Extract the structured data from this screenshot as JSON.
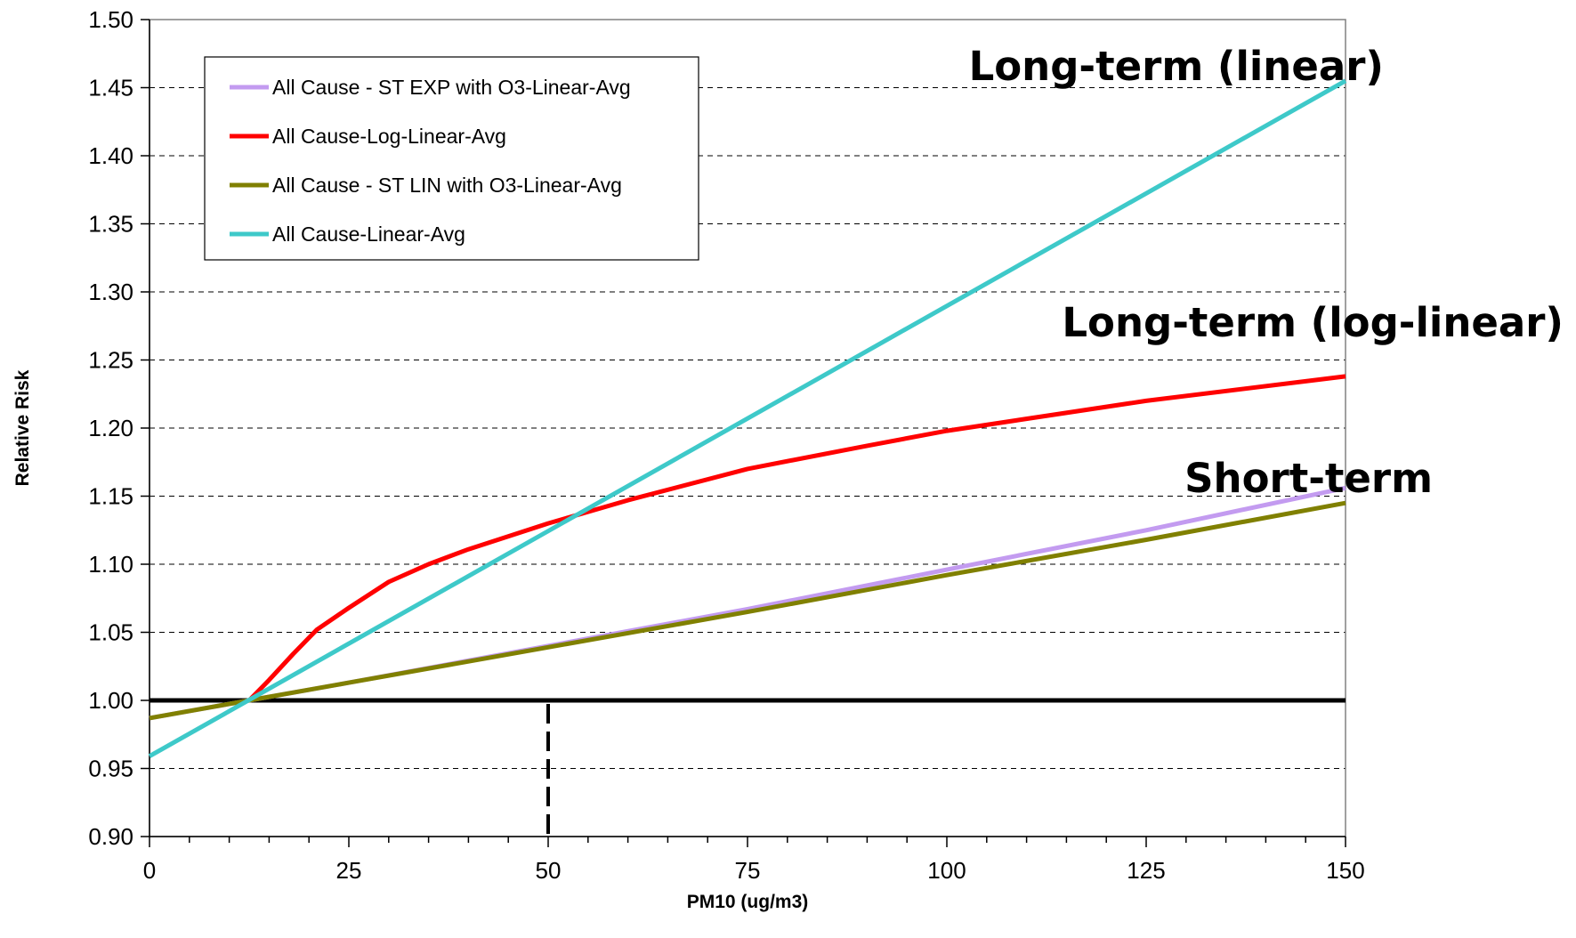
{
  "chart_data": {
    "type": "line",
    "title": "",
    "xlabel": "PM10 (ug/m3)",
    "ylabel": "Relative Risk",
    "xlim": [
      0,
      150
    ],
    "ylim": [
      0.9,
      1.5
    ],
    "x_ticks": [
      0,
      25,
      50,
      75,
      100,
      125,
      150
    ],
    "x_tick_labels": [
      "0",
      "25",
      "50",
      "75",
      "100",
      "125",
      "150"
    ],
    "y_ticks": [
      0.9,
      0.95,
      1.0,
      1.05,
      1.1,
      1.15,
      1.2,
      1.25,
      1.3,
      1.35,
      1.4,
      1.45,
      1.5
    ],
    "y_tick_labels": [
      "0.90",
      "0.95",
      "1.00",
      "1.05",
      "1.10",
      "1.15",
      "1.20",
      "1.25",
      "1.30",
      "1.35",
      "1.40",
      "1.45",
      "1.50"
    ],
    "grid": "horizontal dashed",
    "legend_position": "top-left",
    "reference_line": {
      "y": 1.0,
      "color": "#000000"
    },
    "marker_line": {
      "x": 50,
      "y_from": 0.9,
      "y_to": 1.0,
      "style": "dashed",
      "color": "#000000"
    },
    "series": [
      {
        "name": "All Cause - ST EXP with O3-Linear-Avg",
        "color": "#c39bf0",
        "x": [
          0,
          12.5,
          25,
          50,
          75,
          100,
          125,
          150
        ],
        "y": [
          0.987,
          1.0,
          1.013,
          1.04,
          1.067,
          1.096,
          1.125,
          1.156
        ]
      },
      {
        "name": "All Cause-Log-Linear-Avg",
        "color": "#ff0000",
        "x": [
          12.5,
          15,
          18,
          21,
          25,
          30,
          35,
          40,
          50,
          60,
          75,
          90,
          100,
          125,
          150
        ],
        "y": [
          1.0,
          1.015,
          1.034,
          1.052,
          1.068,
          1.087,
          1.1,
          1.111,
          1.13,
          1.147,
          1.17,
          1.187,
          1.198,
          1.22,
          1.238
        ]
      },
      {
        "name": "All Cause - ST LIN with O3-Linear-Avg",
        "color": "#808000",
        "x": [
          0,
          12.5,
          25,
          50,
          75,
          100,
          125,
          150
        ],
        "y": [
          0.987,
          1.0,
          1.013,
          1.039,
          1.065,
          1.092,
          1.118,
          1.145
        ]
      },
      {
        "name": "All Cause-Linear-Avg",
        "color": "#3ec9c9",
        "x": [
          0,
          150
        ],
        "y": [
          0.959,
          1.455
        ]
      }
    ],
    "annotations": [
      {
        "text": "Long-term (linear)",
        "x": 150,
        "y": 1.46
      },
      {
        "text": "Long-term (log-linear)",
        "x": 150,
        "y": 1.27
      },
      {
        "text": "Short-term",
        "x": 150,
        "y": 1.15
      }
    ]
  }
}
